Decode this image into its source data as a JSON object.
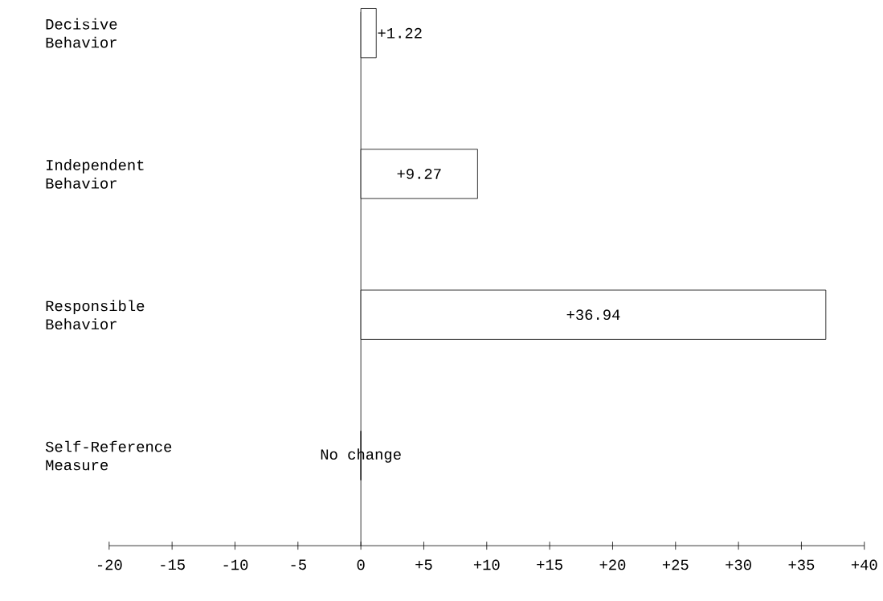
{
  "chart_data": {
    "type": "bar",
    "orientation": "horizontal",
    "categories": [
      "Decisive Behavior",
      "Independent Behavior",
      "Responsible Behavior",
      "Self-Reference Measure"
    ],
    "values": [
      1.22,
      9.27,
      36.94,
      0
    ],
    "value_labels": [
      "+1.22",
      "+9.27",
      "+36.94",
      "No change"
    ],
    "color": "#000000",
    "xlim": [
      -20,
      40
    ],
    "xticks": [
      -20,
      -15,
      -10,
      -5,
      0,
      {
        "value": 5,
        "label": "+5"
      },
      {
        "value": 10,
        "label": "+10"
      },
      {
        "value": 15,
        "label": "+15"
      },
      {
        "value": 20,
        "label": "+20"
      },
      {
        "value": 25,
        "label": "+25"
      },
      {
        "value": 30,
        "label": "+30"
      },
      {
        "value": 35,
        "label": "+35"
      },
      {
        "value": 40,
        "label": "+40"
      }
    ]
  }
}
